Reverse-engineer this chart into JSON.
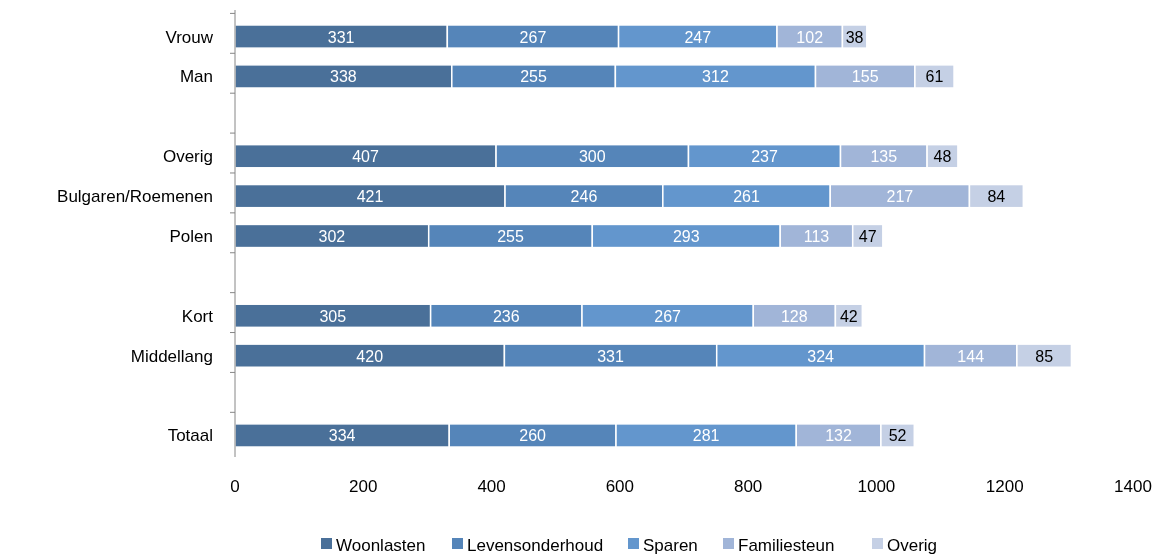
{
  "chart_data": {
    "type": "bar",
    "orientation": "horizontal",
    "stacked": true,
    "data_labels": true,
    "legend": "bottom",
    "grid": false,
    "categories": [
      "Vrouw",
      "Man",
      null,
      "Overig",
      "Bulgaren/Roemenen",
      "Polen",
      null,
      "Kort",
      "Middellang",
      null,
      "Totaal"
    ],
    "xlim": [
      0,
      1400
    ],
    "xticks": [
      0,
      200,
      400,
      600,
      800,
      1000,
      1200,
      1400
    ],
    "series": [
      {
        "name": "Woonlasten",
        "color": "#4a7099",
        "values": [
          331,
          338,
          null,
          407,
          421,
          302,
          null,
          305,
          420,
          null,
          334
        ]
      },
      {
        "name": "Levensonderhoud",
        "color": "#5585b9",
        "values": [
          267,
          255,
          null,
          300,
          246,
          255,
          null,
          236,
          331,
          null,
          260
        ]
      },
      {
        "name": "Sparen",
        "color": "#6396cd",
        "values": [
          247,
          312,
          null,
          237,
          261,
          293,
          null,
          267,
          324,
          null,
          281
        ]
      },
      {
        "name": "Familiesteun",
        "color": "#a1b5d8",
        "values": [
          102,
          155,
          null,
          135,
          217,
          113,
          null,
          128,
          144,
          null,
          132
        ]
      },
      {
        "name": "Overig",
        "color": "#c5d0e5",
        "values": [
          38,
          61,
          null,
          48,
          84,
          47,
          null,
          42,
          85,
          null,
          52
        ]
      }
    ]
  }
}
